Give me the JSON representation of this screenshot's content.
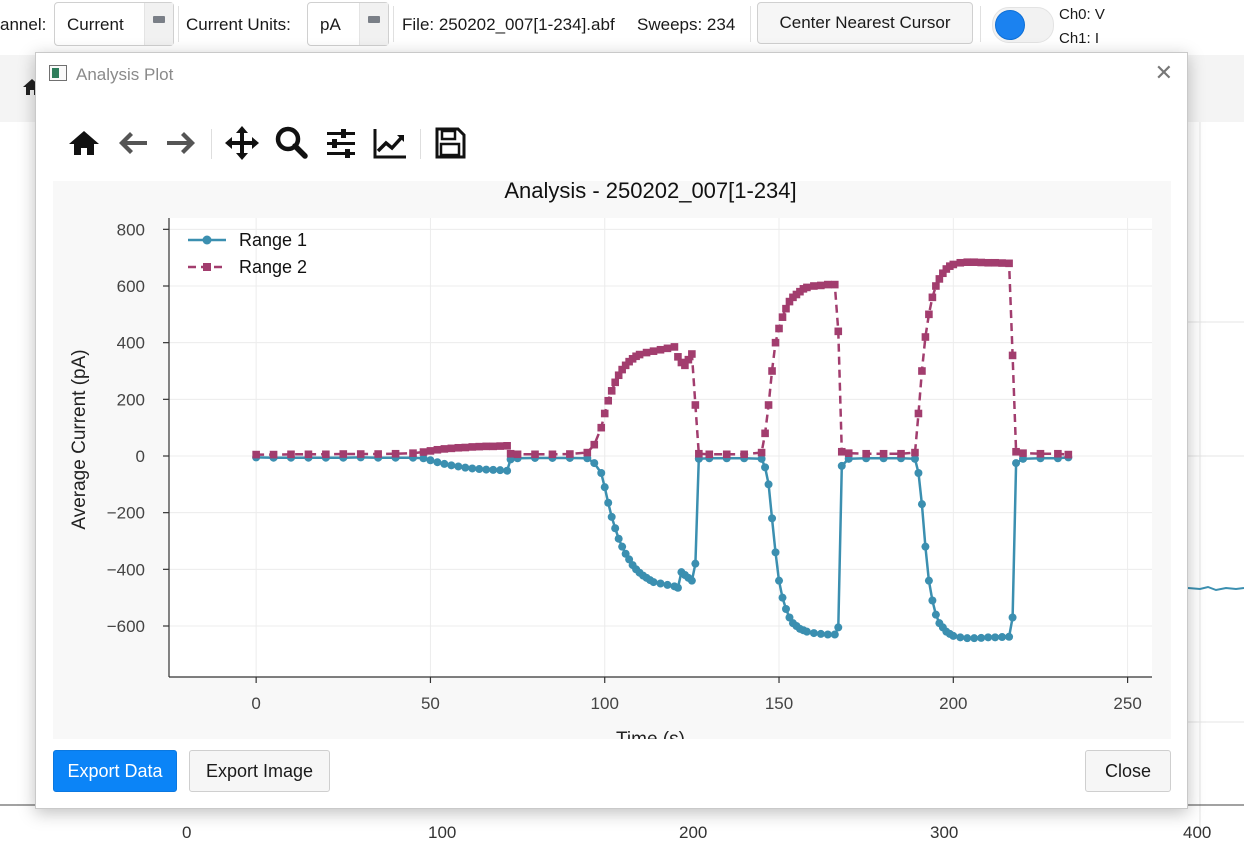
{
  "toolbar": {
    "channel_label": "annel:",
    "channel_value": "Current",
    "units_label": "Current Units:",
    "units_value": "pA",
    "file_info": "File: 250202_007[1-234].abf",
    "sweeps_info": "Sweeps: 234",
    "center_button": "Center Nearest Cursor",
    "ch0_label": "Ch0: V",
    "ch1_label": "Ch1: I"
  },
  "background": {
    "x_ticks": [
      "0",
      "100",
      "200",
      "300",
      "400"
    ]
  },
  "dialog": {
    "title": "Analysis Plot",
    "close_glyph": "✕",
    "export_data_label": "Export Data",
    "export_image_label": "Export Image",
    "close_label": "Close"
  },
  "mpl_tools": [
    "home-icon",
    "back-arrow-icon",
    "forward-arrow-icon",
    "pan-icon",
    "zoom-icon",
    "subplots-config-icon",
    "edit-curves-icon",
    "save-icon"
  ],
  "colors": {
    "range1": "#3b8fb0",
    "range2": "#a23d6e",
    "primary_button": "#0b84f7",
    "toggle": "#1b82f0"
  },
  "chart_data": {
    "type": "line",
    "title": "Analysis - 250202_007[1-234]",
    "xlabel": "Time (s)",
    "ylabel": "Average Current (pA)",
    "xlim": [
      -25,
      257
    ],
    "ylim": [
      -780,
      840
    ],
    "x_ticks": [
      0,
      50,
      100,
      150,
      200,
      250
    ],
    "y_ticks": [
      800,
      600,
      400,
      200,
      0,
      -200,
      -400,
      -600
    ],
    "grid": true,
    "legend_position": "top-left",
    "series": [
      {
        "name": "Range 1",
        "marker": "circle",
        "line": "solid",
        "points": [
          [
            0,
            -5
          ],
          [
            5,
            -6
          ],
          [
            10,
            -6
          ],
          [
            15,
            -6
          ],
          [
            20,
            -6
          ],
          [
            25,
            -6
          ],
          [
            30,
            -5
          ],
          [
            35,
            -6
          ],
          [
            40,
            -6
          ],
          [
            45,
            -6
          ],
          [
            48,
            -8
          ],
          [
            50,
            -15
          ],
          [
            52,
            -22
          ],
          [
            54,
            -28
          ],
          [
            56,
            -33
          ],
          [
            58,
            -37
          ],
          [
            60,
            -41
          ],
          [
            62,
            -44
          ],
          [
            64,
            -46
          ],
          [
            66,
            -48
          ],
          [
            68,
            -49
          ],
          [
            70,
            -50
          ],
          [
            72,
            -52
          ],
          [
            73,
            -12
          ],
          [
            75,
            -8
          ],
          [
            80,
            -7
          ],
          [
            85,
            -7
          ],
          [
            90,
            -7
          ],
          [
            95,
            -8
          ],
          [
            97,
            -25
          ],
          [
            99,
            -60
          ],
          [
            100,
            -110
          ],
          [
            101,
            -165
          ],
          [
            102,
            -215
          ],
          [
            103,
            -255
          ],
          [
            104,
            -292
          ],
          [
            105,
            -320
          ],
          [
            106,
            -345
          ],
          [
            107,
            -365
          ],
          [
            108,
            -385
          ],
          [
            109,
            -400
          ],
          [
            110,
            -412
          ],
          [
            111,
            -422
          ],
          [
            112,
            -430
          ],
          [
            113,
            -438
          ],
          [
            114,
            -445
          ],
          [
            116,
            -450
          ],
          [
            118,
            -455
          ],
          [
            120,
            -460
          ],
          [
            121,
            -465
          ],
          [
            122,
            -410
          ],
          [
            123,
            -420
          ],
          [
            124,
            -430
          ],
          [
            125,
            -440
          ],
          [
            126,
            -380
          ],
          [
            127,
            -10
          ],
          [
            130,
            -8
          ],
          [
            135,
            -8
          ],
          [
            140,
            -8
          ],
          [
            145,
            -10
          ],
          [
            146,
            -40
          ],
          [
            147,
            -100
          ],
          [
            148,
            -220
          ],
          [
            149,
            -340
          ],
          [
            150,
            -440
          ],
          [
            151,
            -500
          ],
          [
            152,
            -540
          ],
          [
            153,
            -570
          ],
          [
            154,
            -590
          ],
          [
            155,
            -600
          ],
          [
            156,
            -610
          ],
          [
            157,
            -615
          ],
          [
            158,
            -620
          ],
          [
            160,
            -625
          ],
          [
            162,
            -628
          ],
          [
            164,
            -630
          ],
          [
            166,
            -630
          ],
          [
            167,
            -605
          ],
          [
            168,
            -35
          ],
          [
            170,
            -10
          ],
          [
            175,
            -8
          ],
          [
            180,
            -8
          ],
          [
            185,
            -8
          ],
          [
            189,
            -10
          ],
          [
            190,
            -60
          ],
          [
            191,
            -170
          ],
          [
            192,
            -320
          ],
          [
            193,
            -440
          ],
          [
            194,
            -510
          ],
          [
            195,
            -560
          ],
          [
            196,
            -590
          ],
          [
            197,
            -605
          ],
          [
            198,
            -620
          ],
          [
            199,
            -628
          ],
          [
            200,
            -635
          ],
          [
            202,
            -640
          ],
          [
            204,
            -643
          ],
          [
            206,
            -643
          ],
          [
            208,
            -642
          ],
          [
            210,
            -640
          ],
          [
            212,
            -640
          ],
          [
            214,
            -639
          ],
          [
            216,
            -638
          ],
          [
            217,
            -570
          ],
          [
            218,
            -25
          ],
          [
            220,
            -10
          ],
          [
            225,
            -8
          ],
          [
            230,
            -8
          ],
          [
            233,
            -5
          ]
        ]
      },
      {
        "name": "Range 2",
        "marker": "square",
        "line": "dashed",
        "points": [
          [
            0,
            5
          ],
          [
            5,
            5
          ],
          [
            10,
            6
          ],
          [
            15,
            6
          ],
          [
            20,
            6
          ],
          [
            25,
            7
          ],
          [
            30,
            7
          ],
          [
            35,
            7
          ],
          [
            40,
            8
          ],
          [
            45,
            10
          ],
          [
            48,
            14
          ],
          [
            50,
            18
          ],
          [
            52,
            22
          ],
          [
            54,
            25
          ],
          [
            56,
            27
          ],
          [
            58,
            29
          ],
          [
            60,
            30
          ],
          [
            62,
            32
          ],
          [
            64,
            33
          ],
          [
            66,
            34
          ],
          [
            68,
            34
          ],
          [
            70,
            35
          ],
          [
            72,
            36
          ],
          [
            73,
            8
          ],
          [
            75,
            6
          ],
          [
            80,
            6
          ],
          [
            85,
            6
          ],
          [
            90,
            7
          ],
          [
            95,
            12
          ],
          [
            97,
            40
          ],
          [
            99,
            100
          ],
          [
            100,
            150
          ],
          [
            101,
            195
          ],
          [
            102,
            230
          ],
          [
            103,
            260
          ],
          [
            104,
            285
          ],
          [
            105,
            305
          ],
          [
            106,
            320
          ],
          [
            107,
            333
          ],
          [
            108,
            343
          ],
          [
            109,
            352
          ],
          [
            110,
            358
          ],
          [
            112,
            365
          ],
          [
            114,
            370
          ],
          [
            116,
            375
          ],
          [
            118,
            380
          ],
          [
            120,
            385
          ],
          [
            121,
            350
          ],
          [
            122,
            330
          ],
          [
            123,
            320
          ],
          [
            124,
            340
          ],
          [
            125,
            360
          ],
          [
            126,
            180
          ],
          [
            127,
            8
          ],
          [
            130,
            6
          ],
          [
            135,
            6
          ],
          [
            140,
            6
          ],
          [
            145,
            12
          ],
          [
            146,
            80
          ],
          [
            147,
            180
          ],
          [
            148,
            300
          ],
          [
            149,
            400
          ],
          [
            150,
            450
          ],
          [
            151,
            490
          ],
          [
            152,
            520
          ],
          [
            153,
            545
          ],
          [
            154,
            560
          ],
          [
            155,
            570
          ],
          [
            156,
            580
          ],
          [
            157,
            590
          ],
          [
            158,
            595
          ],
          [
            160,
            600
          ],
          [
            162,
            602
          ],
          [
            164,
            605
          ],
          [
            166,
            605
          ],
          [
            167,
            440
          ],
          [
            168,
            15
          ],
          [
            170,
            10
          ],
          [
            175,
            8
          ],
          [
            180,
            8
          ],
          [
            185,
            8
          ],
          [
            189,
            12
          ],
          [
            190,
            150
          ],
          [
            191,
            300
          ],
          [
            192,
            420
          ],
          [
            193,
            500
          ],
          [
            194,
            560
          ],
          [
            195,
            600
          ],
          [
            196,
            625
          ],
          [
            197,
            645
          ],
          [
            198,
            660
          ],
          [
            199,
            670
          ],
          [
            200,
            676
          ],
          [
            202,
            682
          ],
          [
            204,
            684
          ],
          [
            206,
            684
          ],
          [
            208,
            683
          ],
          [
            210,
            682
          ],
          [
            212,
            682
          ],
          [
            214,
            681
          ],
          [
            216,
            680
          ],
          [
            217,
            355
          ],
          [
            218,
            15
          ],
          [
            220,
            10
          ],
          [
            225,
            8
          ],
          [
            230,
            8
          ],
          [
            233,
            5
          ]
        ]
      }
    ]
  }
}
